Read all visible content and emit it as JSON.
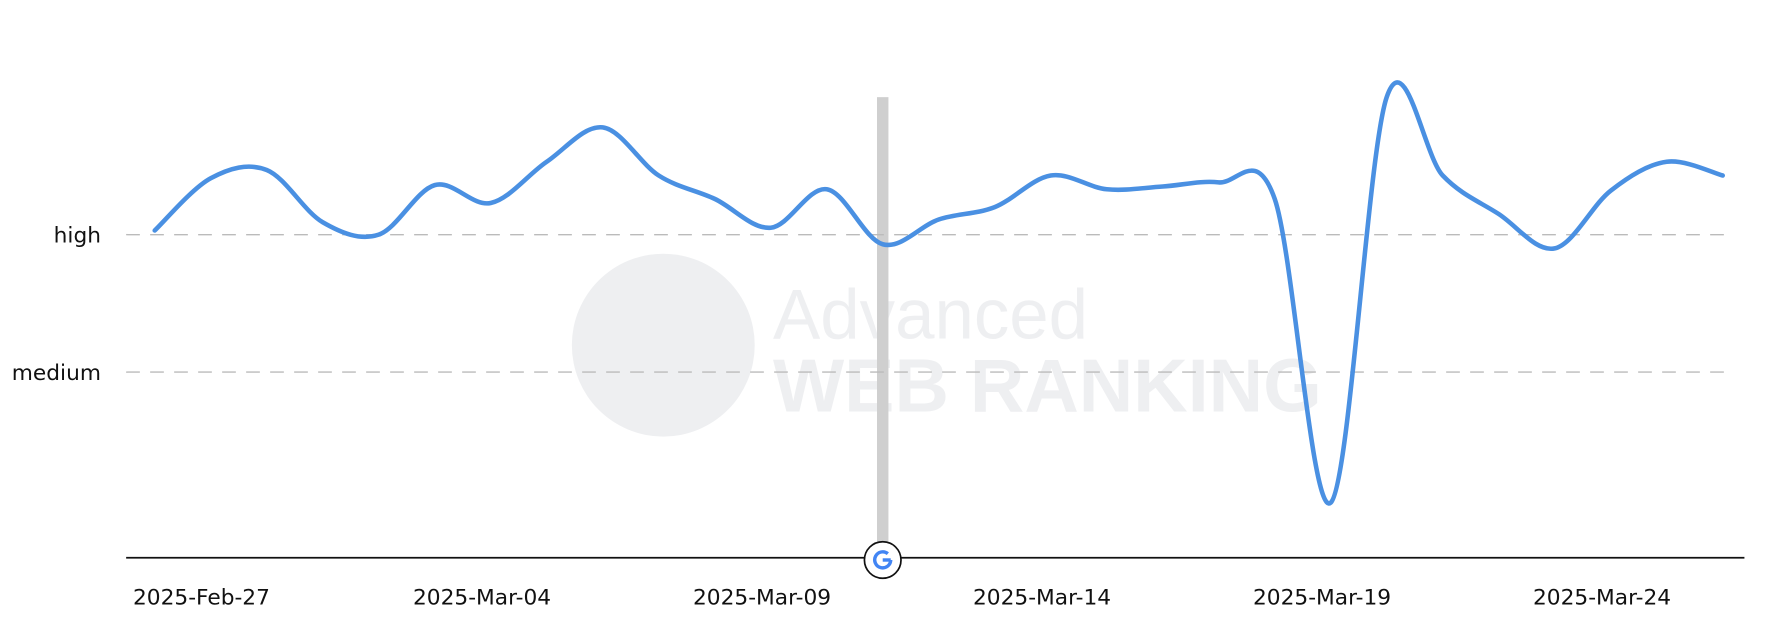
{
  "chart_data": {
    "type": "line",
    "x": [
      "2025-Feb-27",
      "2025-Feb-28",
      "2025-Mar-01",
      "2025-Mar-02",
      "2025-Mar-03",
      "2025-Mar-04",
      "2025-Mar-05",
      "2025-Mar-06",
      "2025-Mar-07",
      "2025-Mar-08",
      "2025-Mar-09",
      "2025-Mar-10",
      "2025-Mar-11",
      "2025-Mar-12",
      "2025-Mar-13",
      "2025-Mar-14",
      "2025-Mar-15",
      "2025-Mar-16",
      "2025-Mar-17",
      "2025-Mar-18",
      "2025-Mar-19",
      "2025-Mar-20",
      "2025-Mar-21",
      "2025-Mar-22",
      "2025-Mar-23",
      "2025-Mar-24",
      "2025-Mar-25",
      "2025-Mar-26",
      "2025-Mar-27"
    ],
    "xticks": [
      "2025-Feb-27",
      "2025-Mar-04",
      "2025-Mar-09",
      "2025-Mar-14",
      "2025-Mar-19",
      "2025-Mar-24"
    ],
    "series": [
      {
        "color": "#4a90e2",
        "values": [
          2.03,
          2.41,
          2.47,
          2.09,
          2.0,
          2.36,
          2.23,
          2.53,
          2.78,
          2.43,
          2.26,
          2.05,
          2.33,
          1.93,
          2.11,
          2.2,
          2.43,
          2.33,
          2.35,
          2.38,
          2.26,
          0.05,
          3.0,
          2.43,
          2.15,
          1.9,
          2.32,
          2.53,
          2.43
        ]
      }
    ],
    "ylim": [
      -0.35,
      3.0
    ],
    "yticks": [
      {
        "value": 2,
        "label": "high"
      },
      {
        "value": 1,
        "label": "medium"
      }
    ],
    "grid": true,
    "markers": [
      {
        "x": "2025-Mar-12"
      }
    ],
    "watermark": [
      "Advanced",
      "WEB RANKING"
    ]
  }
}
